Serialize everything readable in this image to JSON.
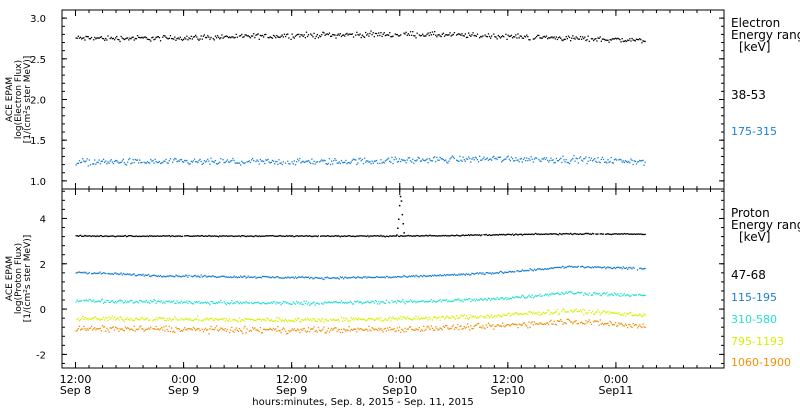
{
  "chart_data": [
    {
      "type": "scatter",
      "panel": "electron",
      "ylabel_lines": [
        "ACE EPAM",
        "log(Electron Flux)",
        "[1/(cm²s ster MeV)]"
      ],
      "yticks": [
        "1.0",
        "1.5",
        "2.0",
        "2.5",
        "3.0"
      ],
      "ylim": [
        0.9,
        3.1
      ],
      "legend": {
        "title_line1": "Electron",
        "title_line2": "Energy ranges",
        "unit": "[keV]",
        "entries": [
          "38-53",
          "175-315"
        ]
      },
      "series": [
        {
          "name": "38-53",
          "color": "#000000",
          "level": 2.76,
          "spread": 0.05,
          "wave": [
            0.0,
            0.0,
            0.02,
            0.04,
            0.05,
            0.03,
            0.0,
            -0.03
          ]
        },
        {
          "name": "175-315",
          "color": "#1a7fd4",
          "level": 1.24,
          "spread": 0.06,
          "wave": [
            0.0,
            0.0,
            0.0,
            0.0,
            0.02,
            0.04,
            0.03,
            0.0
          ]
        }
      ]
    },
    {
      "type": "scatter",
      "panel": "proton",
      "ylabel_lines": [
        "ACE EPAM",
        "log(Proton Flux)",
        "[1/(cm²s ster MeV)]"
      ],
      "yticks": [
        "-2",
        "0",
        "2",
        "4"
      ],
      "ylim": [
        -2.6,
        5.3
      ],
      "legend": {
        "title_line1": "Proton",
        "title_line2": "Energy ranges",
        "unit": "[keV]",
        "entries": [
          "47-68",
          "115-195",
          "310-580",
          "795-1193",
          "1060-1900"
        ]
      },
      "series": [
        {
          "name": "47-68",
          "color": "#000000",
          "level": 3.25,
          "spread": 0.04,
          "wave": [
            0.0,
            0.0,
            0.0,
            0.0,
            0.0,
            0.05,
            0.1,
            0.08
          ]
        },
        {
          "name": "115-195",
          "color": "#1a7fd4",
          "level": 1.45,
          "spread": 0.07,
          "wave": [
            0.2,
            0.05,
            0.0,
            -0.05,
            0.0,
            0.15,
            0.45,
            0.35
          ]
        },
        {
          "name": "310-580",
          "color": "#22e0d0",
          "level": 0.35,
          "spread": 0.12,
          "wave": [
            0.05,
            0.0,
            -0.05,
            -0.05,
            0.0,
            0.1,
            0.4,
            0.25
          ]
        },
        {
          "name": "795-1193",
          "color": "#d6f000",
          "level": -0.4,
          "spread": 0.15,
          "wave": [
            0.0,
            0.0,
            -0.05,
            -0.05,
            0.0,
            0.1,
            0.35,
            0.15
          ]
        },
        {
          "name": "1060-1900",
          "color": "#f0900a",
          "level": -0.85,
          "spread": 0.2,
          "wave": [
            0.0,
            0.0,
            -0.05,
            -0.05,
            0.0,
            0.1,
            0.35,
            0.1
          ]
        }
      ]
    }
  ],
  "xaxis": {
    "ticks": [
      {
        "time": "12:00",
        "date": "Sep 8",
        "t": 0
      },
      {
        "time": "0:00",
        "date": "Sep 9",
        "t": 12
      },
      {
        "time": "12:00",
        "date": "Sep 9",
        "t": 24
      },
      {
        "time": "0:00",
        "date": "Sep10",
        "t": 36
      },
      {
        "time": "12:00",
        "date": "Sep10",
        "t": 48
      },
      {
        "time": "0:00",
        "date": "Sep11",
        "t": 60
      }
    ],
    "xlim": [
      -1.5,
      72
    ],
    "data_end": 63.3,
    "xlabel": "hours:minutes, Sep.  8, 2015 - Sep. 11, 2015"
  }
}
